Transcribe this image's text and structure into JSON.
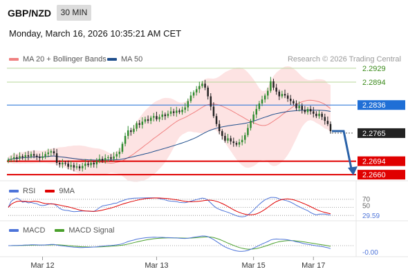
{
  "header": {
    "symbol": "GBP/NZD",
    "interval": "30 MIN",
    "datetime": "Monday, March 16, 2026 10:35:21 AM CET"
  },
  "legend": {
    "bollinger": {
      "label": "MA 20 + Bollinger Bands",
      "color": "#f08080"
    },
    "ma50": {
      "label": "MA 50",
      "color": "#1f4e8c"
    },
    "credit": "Research © 2026 Trading Central"
  },
  "colors": {
    "up": "#2e8b2e",
    "down": "#222222",
    "resistance": "#b7d79a",
    "support": "#e00000",
    "pivot": "#1f6fd6",
    "arrow": "#2a62a8",
    "band_fill": "#fbd0d0",
    "rsi": "#4d74d9",
    "rsi_ma": "#e00000",
    "macd": "#4d74d9",
    "macd_signal": "#4aa02c"
  },
  "chart_data": [
    {
      "type": "candlestick",
      "title": "GBP/NZD",
      "ylim": [
        2.2648,
        2.2948
      ],
      "x_ticks": [
        "Mar 12",
        "Mar 13",
        "Mar 15",
        "Mar 17"
      ],
      "levels": [
        {
          "value": 2.2929,
          "label": "2.2929",
          "role": "resistance"
        },
        {
          "value": 2.2894,
          "label": "2.2894",
          "role": "resistance"
        },
        {
          "value": 2.2836,
          "label": "2.2836",
          "role": "pivot"
        },
        {
          "value": 2.2765,
          "label": "2.2765",
          "role": "current"
        },
        {
          "value": 2.2694,
          "label": "2.2694",
          "role": "support"
        },
        {
          "value": 2.266,
          "label": "2.2660",
          "role": "support"
        }
      ],
      "close": [
        2.2698,
        2.27,
        2.2704,
        2.2701,
        2.2707,
        2.2704,
        2.2709,
        2.2706,
        2.2712,
        2.2708,
        2.2705,
        2.2702,
        2.2706,
        2.2712,
        2.2716,
        2.2719,
        2.2714,
        2.269,
        2.2686,
        2.269,
        2.2688,
        2.268,
        2.2684,
        2.2678,
        2.2681,
        2.2676,
        2.2682,
        2.2688,
        2.2684,
        2.269,
        2.2686,
        2.2694,
        2.27,
        2.2696,
        2.2702,
        2.2704,
        2.27,
        2.2706,
        2.2712,
        2.2718,
        2.2738,
        2.2758,
        2.2772,
        2.2768,
        2.2776,
        2.279,
        2.2786,
        2.2794,
        2.28,
        2.2796,
        2.2804,
        2.2808,
        2.28,
        2.2806,
        2.2812,
        2.2808,
        2.2814,
        2.282,
        2.2816,
        2.2822,
        2.2818,
        2.2824,
        2.283,
        2.2846,
        2.286,
        2.2868,
        2.2876,
        2.2884,
        2.289,
        2.288,
        2.2858,
        2.2832,
        2.2808,
        2.2788,
        2.277,
        2.2758,
        2.2746,
        2.2752,
        2.2744,
        2.274,
        2.2736,
        2.2742,
        2.2748,
        2.276,
        2.2778,
        2.2796,
        2.2812,
        2.2826,
        2.284,
        2.285,
        2.286,
        2.2872,
        2.2896,
        2.288,
        2.287,
        2.2858,
        2.2864,
        2.286,
        2.2852,
        2.2846,
        2.284,
        2.2828,
        2.2834,
        2.2824,
        2.2818,
        2.2826,
        2.282,
        2.2814,
        2.2808,
        2.2814,
        2.2806,
        2.2796,
        2.2788,
        2.277
      ],
      "rsi": {
        "ylim": [
          20,
          80
        ],
        "reference": [
          70,
          50,
          30
        ],
        "last_label": "29.59",
        "reference_labels": [
          "70",
          "50"
        ]
      },
      "macd": {
        "last_label": "-0.00"
      }
    }
  ]
}
